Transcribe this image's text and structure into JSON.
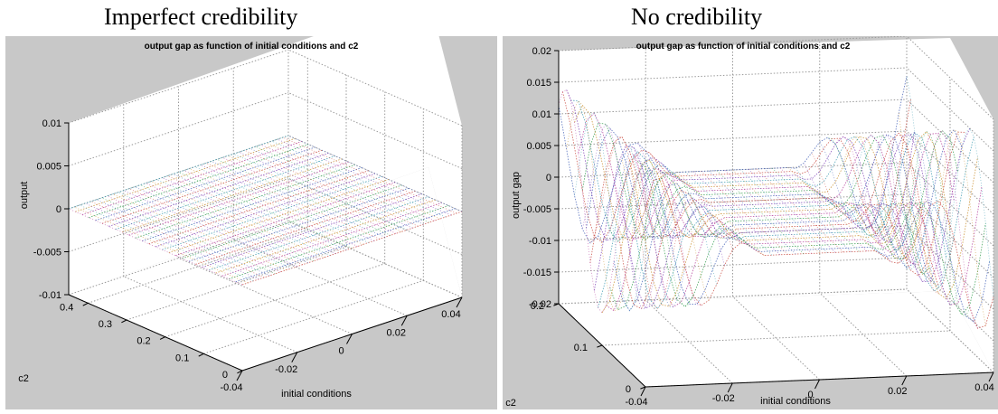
{
  "panels": [
    {
      "heading": "Imperfect credibility",
      "chart_data": {
        "type": "surface",
        "title": "output gap as function of initial conditions and c2",
        "xlabel": "initial conditions",
        "ylabel": "c2",
        "zlabel": "output",
        "xlim": [
          -0.04,
          0.04
        ],
        "ylim": [
          0,
          0.45
        ],
        "zlim": [
          -0.01,
          0.01
        ],
        "xticks": [
          "-0.04",
          "-0.02",
          "0",
          "0.02",
          "0.04"
        ],
        "yticks": [
          "0",
          "0.1",
          "0.2",
          "0.3",
          "0.4"
        ],
        "zticks": [
          "-0.01",
          "-0.005",
          "0",
          "0.005",
          "0.01"
        ],
        "grid": true,
        "surface": "output gap is 0 across the whole grid of initial conditions and c2"
      }
    },
    {
      "heading": "No credibility",
      "chart_data": {
        "type": "surface",
        "title": "output gap as function of initial conditions and c2",
        "xlabel": "initial conditions",
        "ylabel": "c2",
        "zlabel": "output gap",
        "xlim": [
          -0.04,
          0.04
        ],
        "ylim": [
          0,
          0.2
        ],
        "zlim": [
          -0.02,
          0.02
        ],
        "xticks": [
          "-0.04",
          "-0.02",
          "0",
          "0.02",
          "0.04"
        ],
        "yticks": [
          "0",
          "0.1",
          "0.2"
        ],
        "zticks": [
          "-0.02",
          "-0.015",
          "-0.01",
          "-0.005",
          "0",
          "0.005",
          "0.01",
          "0.015",
          "0.02"
        ],
        "grid": true,
        "surface": "output gap is 0 for small initial conditions and fans out to about ±0.015 as initial conditions reach ±0.04"
      }
    }
  ]
}
